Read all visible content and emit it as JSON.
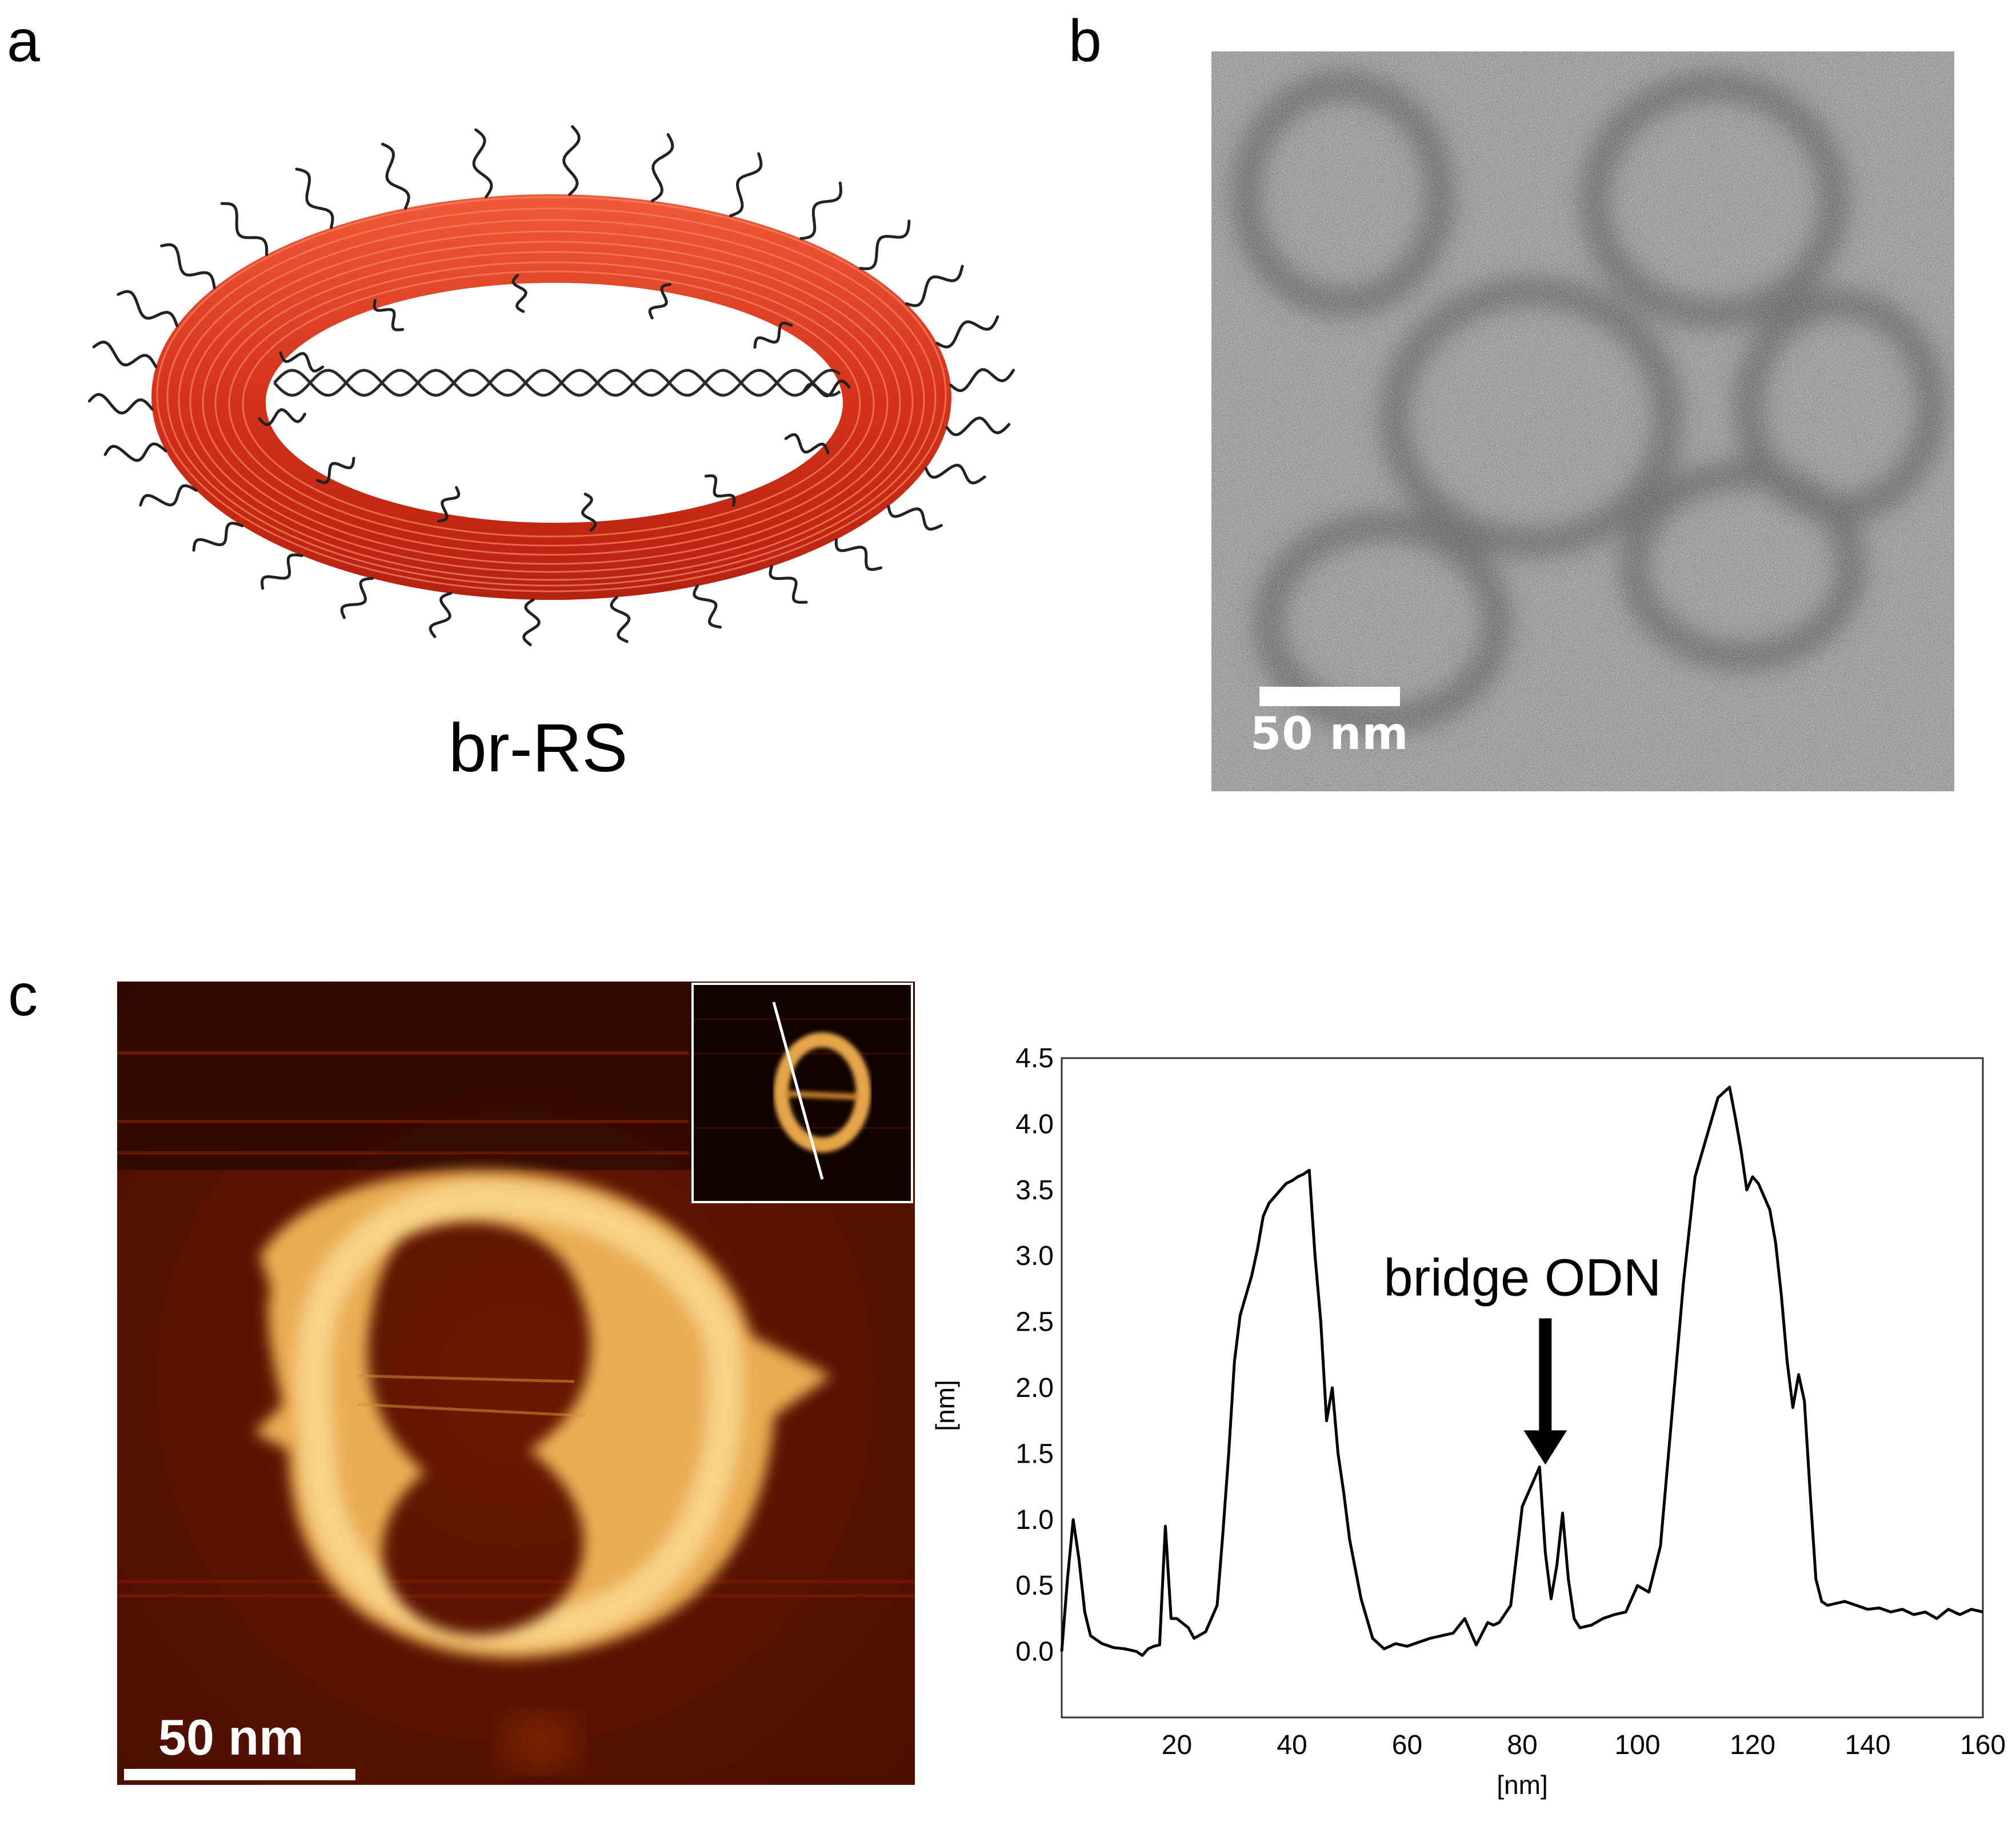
{
  "panels": {
    "a": {
      "letter": "a",
      "caption": "br-RS"
    },
    "b": {
      "letter": "b",
      "scale_label": "50 nm"
    },
    "c": {
      "letter": "c",
      "scale_label": "50 nm"
    }
  },
  "colors": {
    "ring": "#d93a1c",
    "afm_background": "#5a1300",
    "afm_ring": "#f2c670"
  },
  "chart_data": {
    "type": "line",
    "title": "",
    "xlabel": "[nm]",
    "ylabel": "[nm]",
    "xlim": [
      0,
      160
    ],
    "ylim": [
      -0.5,
      4.5
    ],
    "xticks": [
      "20",
      "40",
      "60",
      "80",
      "100",
      "120",
      "140",
      "160"
    ],
    "yticks": [
      "0.0",
      "0.5",
      "1.0",
      "1.5",
      "2.0",
      "2.5",
      "3.0",
      "3.5",
      "4.0",
      "4.5"
    ],
    "annotation": {
      "text": "bridge ODN",
      "x": 84,
      "y": 1.4
    },
    "series": [
      {
        "x": [
          0,
          1,
          2,
          3,
          4,
          5,
          7,
          9,
          11,
          13,
          14,
          15,
          16,
          17,
          18,
          19,
          20,
          22,
          23,
          25,
          27,
          28,
          29,
          30,
          31,
          32,
          33,
          34,
          35,
          36,
          37,
          38,
          39,
          40,
          41,
          42,
          43,
          44,
          45,
          46,
          47,
          48,
          49,
          50,
          52,
          54,
          56,
          58,
          60,
          62,
          64,
          66,
          68,
          70,
          72,
          74,
          75,
          76,
          78,
          80,
          82,
          83,
          84,
          85,
          86,
          87,
          88,
          89,
          90,
          92,
          94,
          96,
          98,
          100,
          102,
          104,
          106,
          108,
          110,
          112,
          114,
          116,
          117,
          118,
          119,
          120,
          121,
          122,
          123,
          124,
          125,
          126,
          127,
          128,
          129,
          130,
          131,
          132,
          133,
          134,
          136,
          138,
          140,
          142,
          144,
          146,
          148,
          150,
          152,
          154,
          156,
          158,
          160
        ],
        "y": [
          0.0,
          0.55,
          1.0,
          0.7,
          0.3,
          0.12,
          0.06,
          0.03,
          0.02,
          0.0,
          -0.03,
          0.02,
          0.04,
          0.05,
          0.95,
          0.25,
          0.25,
          0.18,
          0.1,
          0.15,
          0.35,
          0.9,
          1.5,
          2.2,
          2.55,
          2.7,
          2.85,
          3.05,
          3.3,
          3.4,
          3.45,
          3.5,
          3.55,
          3.57,
          3.6,
          3.62,
          3.65,
          3.0,
          2.5,
          1.75,
          2.0,
          1.5,
          1.2,
          0.85,
          0.4,
          0.1,
          0.02,
          0.06,
          0.04,
          0.07,
          0.1,
          0.12,
          0.14,
          0.25,
          0.05,
          0.22,
          0.2,
          0.22,
          0.35,
          1.1,
          1.3,
          1.4,
          0.75,
          0.4,
          0.65,
          1.05,
          0.55,
          0.25,
          0.18,
          0.2,
          0.25,
          0.28,
          0.3,
          0.5,
          0.45,
          0.8,
          1.8,
          2.8,
          3.6,
          3.9,
          4.2,
          4.28,
          4.05,
          3.8,
          3.5,
          3.6,
          3.55,
          3.45,
          3.35,
          3.1,
          2.7,
          2.2,
          1.85,
          2.1,
          1.9,
          1.2,
          0.55,
          0.38,
          0.35,
          0.36,
          0.38,
          0.35,
          0.32,
          0.33,
          0.3,
          0.32,
          0.28,
          0.3,
          0.25,
          0.32,
          0.28,
          0.32,
          0.3
        ]
      }
    ]
  }
}
